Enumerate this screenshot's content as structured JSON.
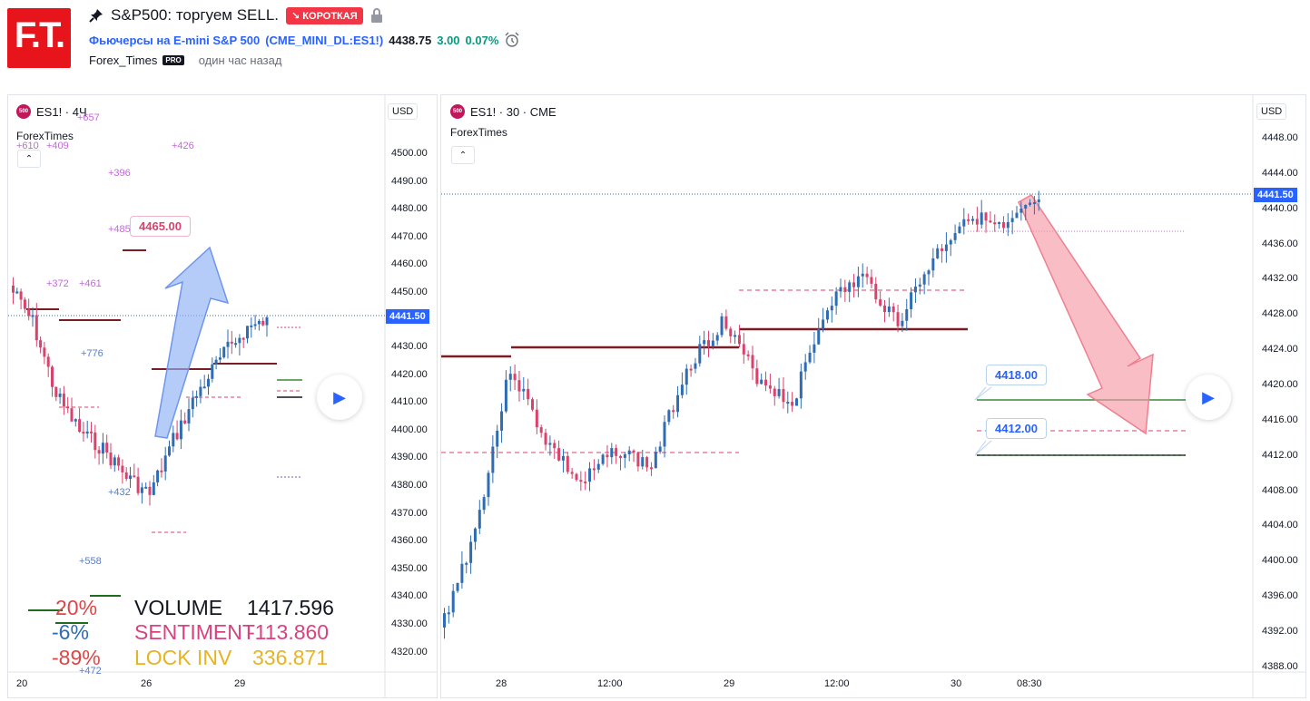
{
  "header": {
    "logo_text": "F.T.",
    "title": "S&P500: торгуем SELL.",
    "badge": "↘ КОРОТКАЯ",
    "symbol_desc": "Фьючерсы на E-mini S&P 500",
    "symbol_code": "CME_MINI_DL:ES1!",
    "last_price": "4438.75",
    "change": "3.00",
    "change_pct": "0.07%",
    "author": "Forex_Times",
    "pro_label": "PRO",
    "time_ago": "один час назад"
  },
  "left_chart": {
    "legend_symbol": "ES1! · 4Ч",
    "icon_label": "500",
    "indicator_name": "ForexTimes",
    "currency": "USD",
    "price_tag": "4441.50",
    "axis_labels": [
      "4500.00",
      "4490.00",
      "4480.00",
      "4470.00",
      "4460.00",
      "4450.00",
      "4430.00",
      "4420.00",
      "4410.00",
      "4400.00",
      "4390.00",
      "4380.00",
      "4370.00",
      "4360.00",
      "4350.00",
      "4340.00",
      "4330.00",
      "4320.00"
    ],
    "time_labels": [
      "20",
      "26",
      "29"
    ],
    "callout": "4465.00",
    "markers": {
      "m657": "+657",
      "m610": "+610",
      "m409": "+409",
      "m426": "+426",
      "m396": "+396",
      "m485": "+485",
      "m372": "+372",
      "m461": "+461",
      "m776": "+776",
      "m432": "+432",
      "m558": "+558",
      "m472": "+472"
    },
    "stats": {
      "pct1": "20%",
      "pct2": "-6%",
      "pct3": "-89%",
      "volume_label": "VOLUME",
      "volume_value": "1417.596",
      "sentiment_label": "SENTIMENT",
      "sentiment_value": "-113.860",
      "lock_label": "LOCK INV",
      "lock_value": "336.871"
    },
    "colors": {
      "up": "#2e6db4",
      "down": "#d9426c"
    }
  },
  "right_chart": {
    "legend_symbol": "ES1! · 30 · CME",
    "icon_label": "500",
    "indicator_name": "ForexTimes",
    "currency": "USD",
    "price_tag": "4441.50",
    "axis_labels": [
      "4448.00",
      "4444.00",
      "4440.00",
      "4436.00",
      "4432.00",
      "4428.00",
      "4424.00",
      "4420.00",
      "4416.00",
      "4412.00",
      "4408.00",
      "4404.00",
      "4400.00",
      "4396.00",
      "4392.00",
      "4388.00"
    ],
    "time_labels": [
      "28",
      "12:00",
      "29",
      "12:00",
      "30",
      "08:30"
    ],
    "callout_tp1": "4418.00",
    "callout_tp2": "4412.00"
  }
}
